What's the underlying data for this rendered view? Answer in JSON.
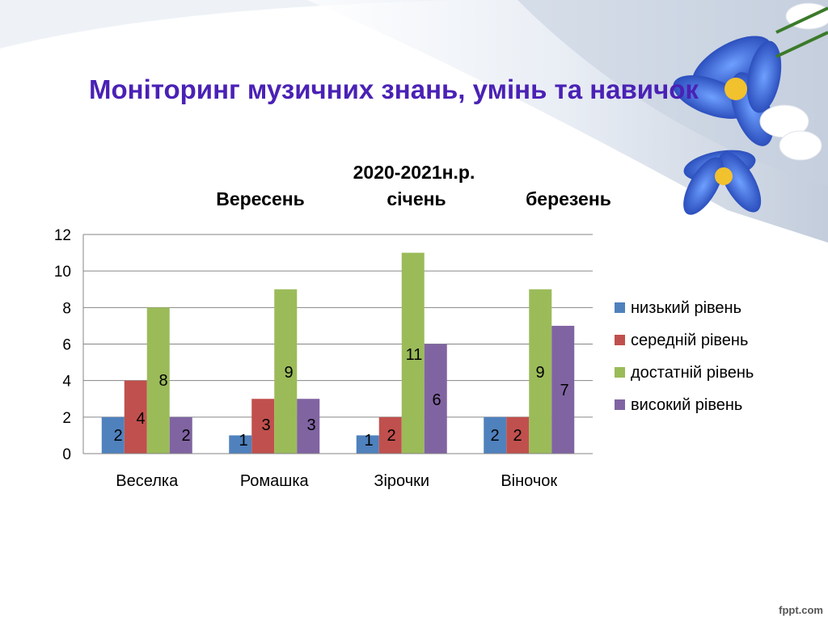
{
  "slide": {
    "title": "Моніторинг музичних знань, умінь та навичок",
    "watermark": "fppt.com"
  },
  "chart_data": {
    "type": "bar",
    "title_lines": [
      "2020-2021н.р."
    ],
    "subtitle_parts": [
      "Вересень",
      "січень",
      "березень"
    ],
    "categories": [
      "Веселка",
      "Ромашка",
      "Зірочки",
      "Віночок"
    ],
    "series": [
      {
        "name": "низький рівень",
        "color": "#4f81bd",
        "values": [
          2,
          1,
          1,
          2
        ]
      },
      {
        "name": "середній рівень",
        "color": "#c0504d",
        "values": [
          4,
          3,
          2,
          2
        ]
      },
      {
        "name": "достатній рівень",
        "color": "#9bbb59",
        "values": [
          8,
          9,
          11,
          9
        ]
      },
      {
        "name": "високий рівень",
        "color": "#8064a2",
        "values": [
          2,
          3,
          6,
          7
        ]
      }
    ],
    "ylim": [
      0,
      12
    ],
    "yticks": [
      0,
      2,
      4,
      6,
      8,
      10,
      12
    ],
    "grid": true,
    "legend_position": "right",
    "data_labels": {
      "Веселка": [
        "2",
        "4",
        "8",
        "2"
      ],
      "Ромашка": [
        "1",
        "3",
        "9",
        "3"
      ],
      "Зірочки": [
        "1",
        "2",
        "11",
        "6"
      ],
      "Віночок": [
        "2",
        "2",
        "9",
        "7"
      ]
    }
  }
}
